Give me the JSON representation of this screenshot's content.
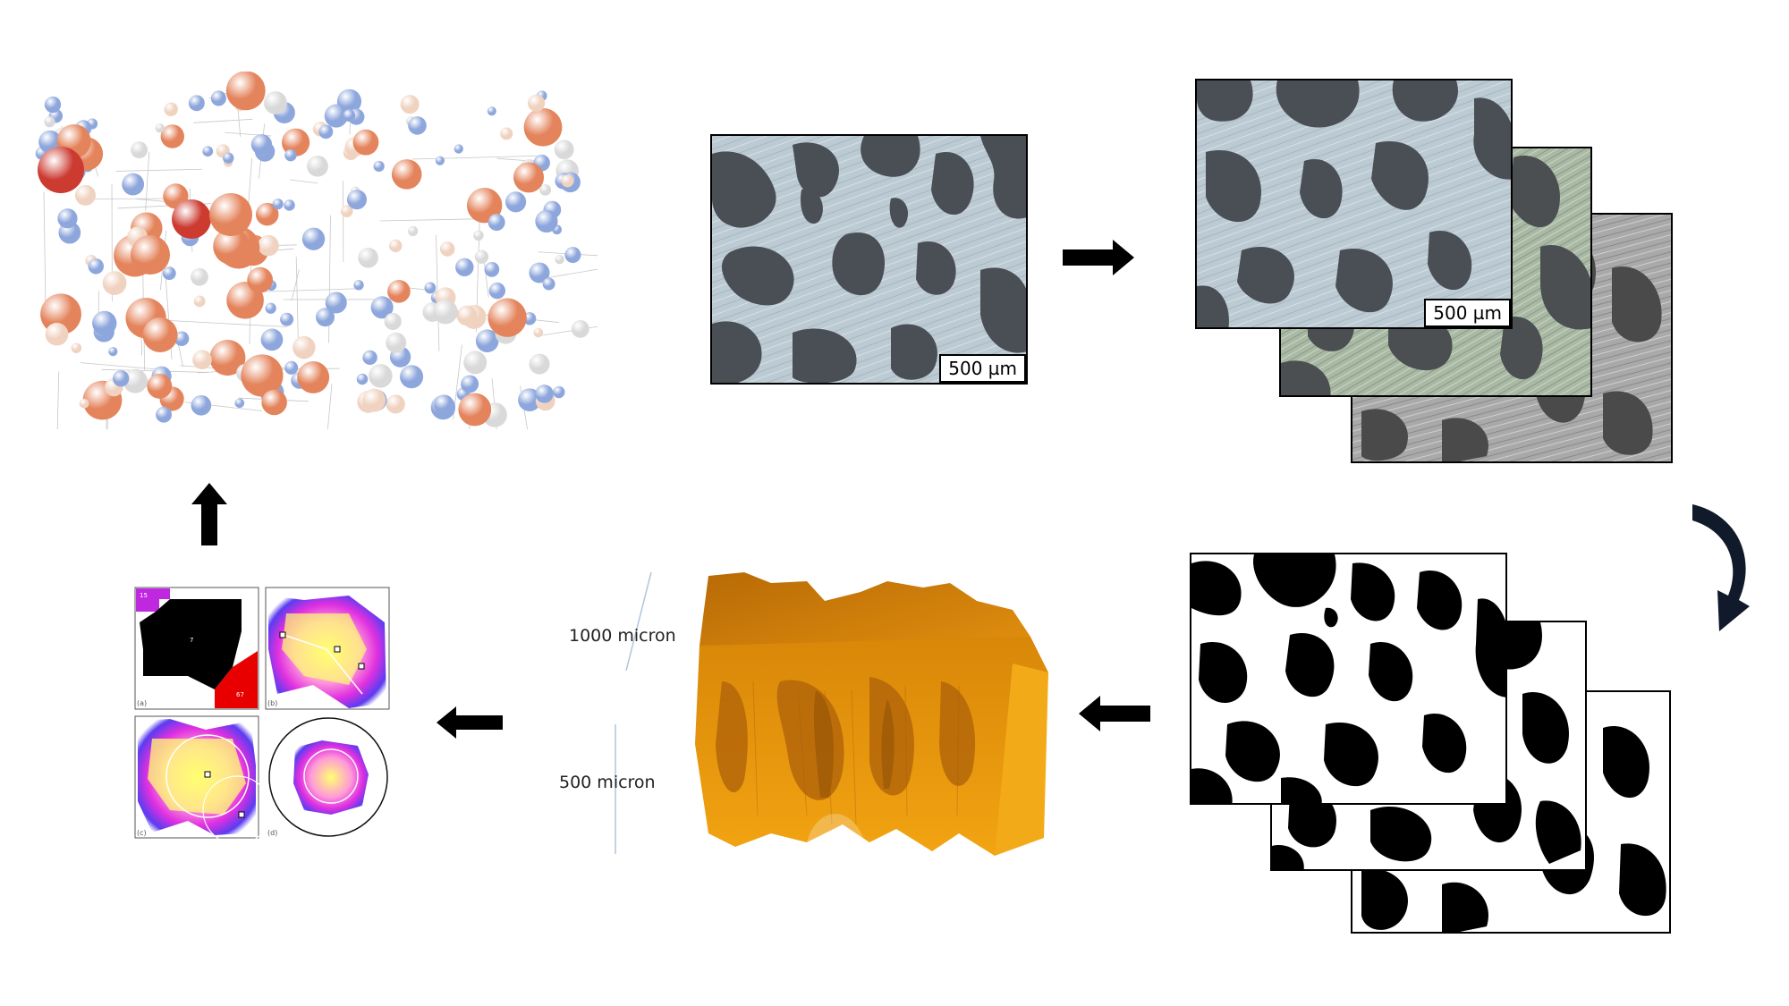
{
  "scale_bars": {
    "single_image": "500 µm",
    "stack_front": "500 µm"
  },
  "reconstruction": {
    "dimension_top": "1000 micron",
    "dimension_bottom": "500 micron"
  },
  "analysis_panels": {
    "a": {
      "tag": "(a)",
      "region_top_left": "15",
      "region_center": "7",
      "region_bottom_right": "67"
    },
    "b": {
      "tag": "(b)"
    },
    "c": {
      "tag": "(c)"
    },
    "d": {
      "tag": "(d)"
    }
  },
  "colors": {
    "pore_dark": "#4a4e55",
    "solid_light": "#b8c6cf",
    "binary_black": "#000000",
    "volume_orange": "#e89a10",
    "sphere_blue": "#8da6dc",
    "sphere_orange": "#e4845c",
    "sphere_red": "#cc3a30",
    "distance_magenta": "#e030e0",
    "distance_yellow": "#ffff60",
    "distance_blue": "#5a3cf0"
  },
  "icons": [
    "arrow-right-icon",
    "curved-arrow-icon",
    "arrow-left-icon",
    "arrow-up-icon"
  ]
}
